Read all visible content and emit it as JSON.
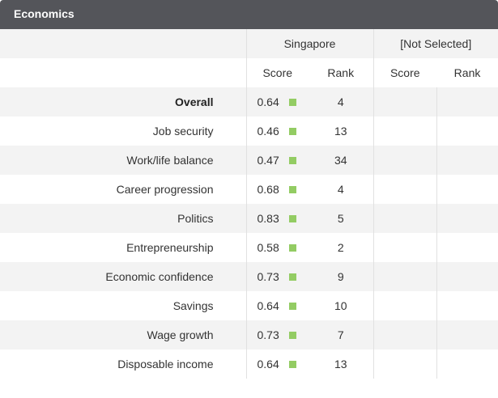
{
  "header": {
    "title": "Economics"
  },
  "columns": {
    "country1": "Singapore",
    "country2": "[Not Selected]",
    "score_label": "Score",
    "rank_label": "Rank"
  },
  "colors": {
    "header_bg": "#54555a",
    "indicator": "#93cc63",
    "row_alt": "#f3f3f3"
  },
  "rows": [
    {
      "label": "Overall",
      "score": "0.64",
      "rank": "4"
    },
    {
      "label": "Job security",
      "score": "0.46",
      "rank": "13"
    },
    {
      "label": "Work/life balance",
      "score": "0.47",
      "rank": "34"
    },
    {
      "label": "Career progression",
      "score": "0.68",
      "rank": "4"
    },
    {
      "label": "Politics",
      "score": "0.83",
      "rank": "5"
    },
    {
      "label": "Entrepreneurship",
      "score": "0.58",
      "rank": "2"
    },
    {
      "label": "Economic confidence",
      "score": "0.73",
      "rank": "9"
    },
    {
      "label": "Savings",
      "score": "0.64",
      "rank": "10"
    },
    {
      "label": "Wage growth",
      "score": "0.73",
      "rank": "7"
    },
    {
      "label": "Disposable income",
      "score": "0.64",
      "rank": "13"
    }
  ]
}
